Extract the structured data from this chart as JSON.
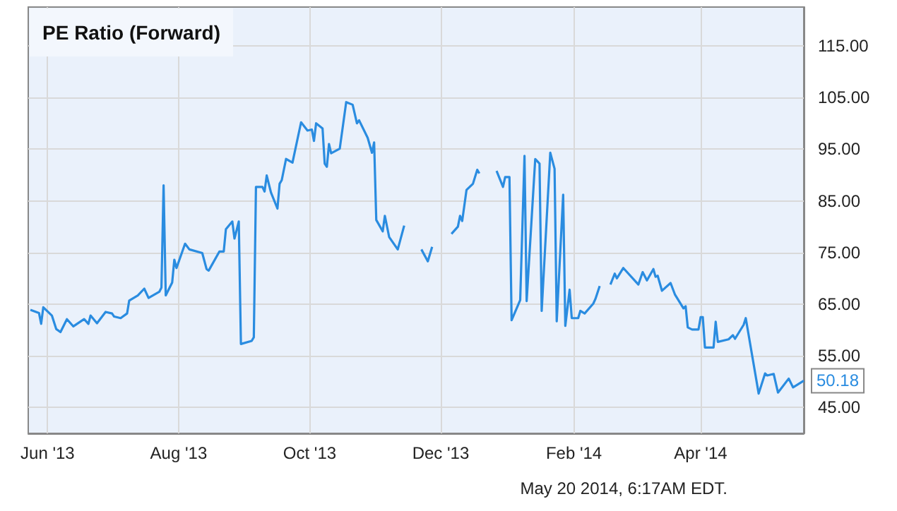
{
  "chart_data": {
    "type": "line",
    "title": "PE Ratio (Forward)",
    "x": [
      "2013-05-24",
      "2013-05-28",
      "2013-05-29",
      "2013-05-30",
      "2013-06-03",
      "2013-06-05",
      "2013-06-07",
      "2013-06-10",
      "2013-06-13",
      "2013-06-18",
      "2013-06-20",
      "2013-06-21",
      "2013-06-24",
      "2013-06-28",
      "2013-07-01",
      "2013-07-02",
      "2013-07-05",
      "2013-07-08",
      "2013-07-09",
      "2013-07-13",
      "2013-07-16",
      "2013-07-18",
      "2013-07-23",
      "2013-07-24",
      "2013-07-25",
      "2013-07-26",
      "2013-07-29",
      "2013-07-30",
      "2013-07-31",
      "2013-08-04",
      "2013-08-06",
      "2013-08-12",
      "2013-08-14",
      "2013-08-15",
      "2013-08-20",
      "2013-08-22",
      "2013-08-23",
      "2013-08-26",
      "2013-08-27",
      "2013-08-29",
      "2013-08-30",
      "2013-09-04",
      "2013-09-05",
      "2013-09-06",
      "2013-09-09",
      "2013-09-10",
      "2013-09-11",
      "2013-09-13",
      "2013-09-16",
      "2013-09-17",
      "2013-09-18",
      "2013-09-20",
      "2013-09-23",
      "2013-09-27",
      "2013-09-30",
      "2013-10-02",
      "2013-10-03",
      "2013-10-04",
      "2013-10-07",
      "2013-10-08",
      "2013-10-09",
      "2013-10-10",
      "2013-10-11",
      "2013-10-15",
      "2013-10-18",
      "2013-10-21",
      "2013-10-23",
      "2013-10-24",
      "2013-10-28",
      "2013-10-30",
      "2013-10-31",
      "2013-11-01",
      "2013-11-04",
      "2013-11-05",
      "2013-11-07",
      "2013-11-11",
      "2013-11-14",
      "2013-11-19",
      "2013-11-22",
      "2013-11-25",
      "2013-11-27",
      "2013-12-03",
      "2013-12-06",
      "2013-12-09",
      "2013-12-10",
      "2013-12-11",
      "2013-12-13",
      "2013-12-16",
      "2013-12-18",
      "2013-12-19",
      "2013-12-23",
      "2013-12-27",
      "2013-12-30",
      "2013-12-31",
      "2014-01-02",
      "2014-01-03",
      "2014-01-07",
      "2014-01-09",
      "2014-01-10",
      "2014-01-14",
      "2014-01-16",
      "2014-01-17",
      "2014-01-21",
      "2014-01-23",
      "2014-01-24",
      "2014-01-27",
      "2014-01-28",
      "2014-01-30",
      "2014-01-31",
      "2014-02-03",
      "2014-02-04",
      "2014-02-06",
      "2014-02-10",
      "2014-02-11",
      "2014-02-13",
      "2014-02-16",
      "2014-02-18",
      "2014-02-20",
      "2014-02-21",
      "2014-02-24",
      "2014-03-03",
      "2014-03-05",
      "2014-03-07",
      "2014-03-10",
      "2014-03-11",
      "2014-03-12",
      "2014-03-14",
      "2014-03-18",
      "2014-03-20",
      "2014-03-24",
      "2014-03-25",
      "2014-03-26",
      "2014-03-28",
      "2014-03-31",
      "2014-04-01",
      "2014-04-02",
      "2014-04-03",
      "2014-04-07",
      "2014-04-08",
      "2014-04-09",
      "2014-04-14",
      "2014-04-16",
      "2014-04-17",
      "2014-04-21",
      "2014-04-22",
      "2014-04-28",
      "2014-05-01",
      "2014-05-02",
      "2014-05-05",
      "2014-05-07",
      "2014-05-12",
      "2014-05-14",
      "2014-05-16",
      "2014-05-19"
    ],
    "series": [
      {
        "color": "#2a8ce0",
        "values": [
          63.9,
          63.3,
          61.2,
          64.4,
          62.8,
          60.2,
          59.6,
          62.1,
          60.7,
          62.1,
          61.2,
          62.8,
          61.3,
          63.5,
          63.2,
          62.6,
          62.3,
          63.2,
          65.7,
          66.7,
          68.0,
          66.2,
          67.4,
          68.2,
          88.0,
          66.7,
          69.2,
          73.6,
          72.0,
          76.7,
          75.6,
          74.9,
          71.8,
          71.5,
          75.2,
          75.2,
          79.5,
          81.0,
          77.7,
          81.0,
          57.3,
          57.9,
          58.6,
          87.7,
          87.7,
          86.8,
          89.9,
          86.6,
          83.5,
          88.3,
          89.0,
          93.1,
          92.4,
          100.2,
          98.6,
          98.8,
          96.6,
          100.0,
          99.0,
          92.2,
          91.6,
          96.0,
          94.2,
          95.1,
          104.1,
          103.6,
          100.0,
          100.6,
          97.2,
          94.3,
          96.3,
          81.3,
          79.1,
          82.1,
          78.0,
          75.6,
          80.2,
          null,
          75.6,
          73.3,
          76.1,
          null,
          78.6,
          80.0,
          82.1,
          81.1,
          87.1,
          88.3,
          91.0,
          90.3,
          null,
          90.8,
          87.7,
          89.6,
          89.6,
          61.9,
          65.8,
          93.7,
          65.6,
          93.1,
          92.2,
          63.7,
          94.3,
          91.2,
          61.7,
          86.2,
          60.8,
          67.8,
          62.3,
          62.3,
          63.7,
          63.2,
          65.1,
          66.0,
          68.5,
          null,
          68.8,
          70.9,
          70.0,
          72.0,
          68.8,
          71.2,
          69.6,
          71.8,
          70.3,
          70.5,
          67.6,
          69.1,
          66.9,
          64.2,
          64.6,
          60.5,
          60.1,
          60.1,
          62.5,
          62.5,
          56.6,
          56.6,
          61.6,
          57.7,
          58.2,
          59.0,
          58.3,
          61.0,
          62.3,
          47.7,
          51.6,
          51.2,
          51.5,
          47.9,
          50.6,
          48.9,
          49.4,
          50.18
        ]
      }
    ],
    "xlim": [
      "2013-05-23",
      "2014-05-19"
    ],
    "xticks": [
      {
        "value": "2013-06-01",
        "label": "Jun '13"
      },
      {
        "value": "2013-08-01",
        "label": "Aug '13"
      },
      {
        "value": "2013-10-01",
        "label": "Oct '13"
      },
      {
        "value": "2013-12-01",
        "label": "Dec '13"
      },
      {
        "value": "2014-02-01",
        "label": "Feb '14"
      },
      {
        "value": "2014-04-01",
        "label": "Apr '14"
      }
    ],
    "ylim": [
      40,
      122.5
    ],
    "yticks": [
      {
        "value": 45,
        "label": "45.00"
      },
      {
        "value": 55,
        "label": "55.00"
      },
      {
        "value": 65,
        "label": "65.00"
      },
      {
        "value": 75,
        "label": "75.00"
      },
      {
        "value": 85,
        "label": "85.00"
      },
      {
        "value": 95,
        "label": "95.00"
      },
      {
        "value": 105,
        "label": "105.00"
      },
      {
        "value": 115,
        "label": "115.00"
      }
    ],
    "grid": true,
    "annotations": [
      "May 20 2014, 6:17AM EDT.",
      {
        "text": "50.18",
        "x": "2014-05-19",
        "y": 50.18
      }
    ]
  }
}
